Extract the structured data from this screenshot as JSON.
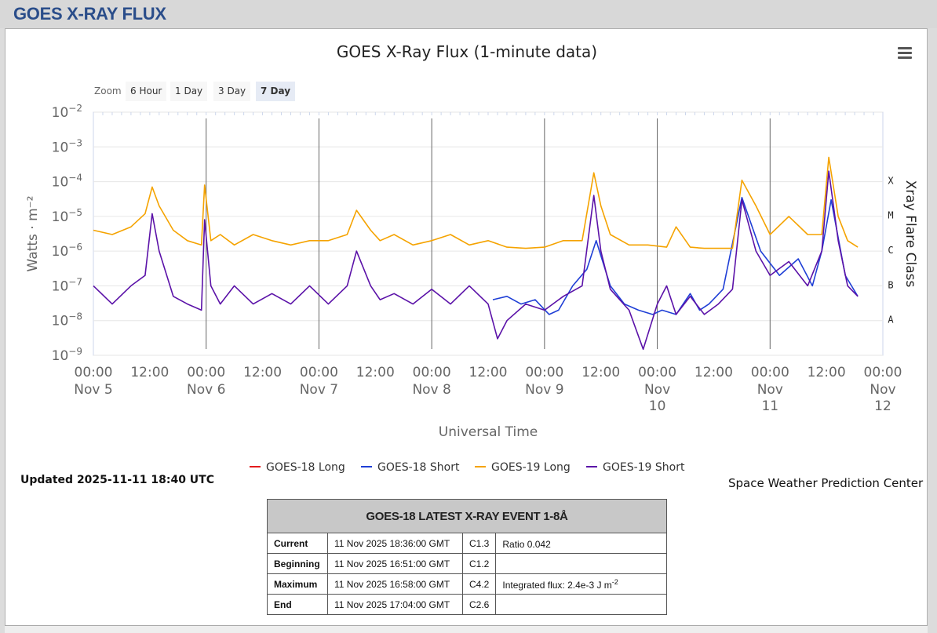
{
  "page": {
    "title": "GOES X-RAY FLUX"
  },
  "chart_data": {
    "type": "line",
    "title": "GOES X-Ray Flux (1-minute data)",
    "xlabel": "Universal Time",
    "ylabel": "Watts · m⁻²",
    "y2label": "Xray Flare Class",
    "yscale": "log",
    "ylim": [
      1e-09,
      0.01
    ],
    "xlim": [
      "2025-11-05 00:00",
      "2025-11-12 00:00"
    ],
    "y_ticks": [
      {
        "base": "10",
        "exp": "−2"
      },
      {
        "base": "10",
        "exp": "−3"
      },
      {
        "base": "10",
        "exp": "−4"
      },
      {
        "base": "10",
        "exp": "−5"
      },
      {
        "base": "10",
        "exp": "−6"
      },
      {
        "base": "10",
        "exp": "−7"
      },
      {
        "base": "10",
        "exp": "−8"
      },
      {
        "base": "10",
        "exp": "−9"
      }
    ],
    "flare_classes": [
      "X",
      "M",
      "C",
      "B",
      "A"
    ],
    "x_ticks": [
      {
        "time": "00:00",
        "date": [
          "Nov 5"
        ]
      },
      {
        "time": "12:00",
        "date": []
      },
      {
        "time": "00:00",
        "date": [
          "Nov 6"
        ]
      },
      {
        "time": "12:00",
        "date": []
      },
      {
        "time": "00:00",
        "date": [
          "Nov 7"
        ]
      },
      {
        "time": "12:00",
        "date": []
      },
      {
        "time": "00:00",
        "date": [
          "Nov 8"
        ]
      },
      {
        "time": "12:00",
        "date": []
      },
      {
        "time": "00:00",
        "date": [
          "Nov 9"
        ]
      },
      {
        "time": "12:00",
        "date": []
      },
      {
        "time": "00:00",
        "date": [
          "Nov",
          "10"
        ]
      },
      {
        "time": "12:00",
        "date": []
      },
      {
        "time": "00:00",
        "date": [
          "Nov",
          "11"
        ]
      },
      {
        "time": "12:00",
        "date": []
      },
      {
        "time": "00:00",
        "date": [
          "Nov",
          "12"
        ]
      }
    ],
    "series": [
      {
        "name": "GOES-18 Long",
        "color": "#e31a1c",
        "x": [],
        "y": []
      },
      {
        "name": "GOES-18 Short",
        "color": "#1f3fd6",
        "x": [
          "2025-11-08 13:00",
          "2025-11-08 16:00",
          "2025-11-08 19:00",
          "2025-11-08 22:00",
          "2025-11-09 01:00",
          "2025-11-09 03:00",
          "2025-11-09 06:00",
          "2025-11-09 09:00",
          "2025-11-09 11:00",
          "2025-11-09 14:00",
          "2025-11-09 17:00",
          "2025-11-09 20:00",
          "2025-11-09 23:00",
          "2025-11-10 01:00",
          "2025-11-10 04:00",
          "2025-11-10 07:00",
          "2025-11-10 09:00",
          "2025-11-10 11:00",
          "2025-11-10 14:00",
          "2025-11-10 18:00",
          "2025-11-10 22:00",
          "2025-11-11 02:00",
          "2025-11-11 06:00",
          "2025-11-11 09:00",
          "2025-11-11 11:00",
          "2025-11-11 13:00",
          "2025-11-11 16:00",
          "2025-11-11 18:40"
        ],
        "y": [
          4e-08,
          5e-08,
          3e-08,
          4e-08,
          1.5e-08,
          2e-08,
          1e-07,
          3e-07,
          2e-06,
          1e-07,
          3e-08,
          2e-08,
          1.5e-08,
          2e-08,
          1.5e-08,
          6e-08,
          2e-08,
          3e-08,
          8e-08,
          3.5e-05,
          1e-06,
          2e-07,
          6e-07,
          1e-07,
          1e-06,
          3e-05,
          2e-07,
          5e-08
        ]
      },
      {
        "name": "GOES-19 Long",
        "color": "#f5a300",
        "x": [
          "2025-11-05 00:00",
          "2025-11-05 04:00",
          "2025-11-05 08:00",
          "2025-11-05 11:00",
          "2025-11-05 12:30",
          "2025-11-05 14:00",
          "2025-11-05 17:00",
          "2025-11-05 20:00",
          "2025-11-05 23:00",
          "2025-11-05 23:40",
          "2025-11-06 01:00",
          "2025-11-06 03:00",
          "2025-11-06 06:00",
          "2025-11-06 10:00",
          "2025-11-06 14:00",
          "2025-11-06 18:00",
          "2025-11-06 22:00",
          "2025-11-07 02:00",
          "2025-11-07 06:00",
          "2025-11-07 08:00",
          "2025-11-07 11:00",
          "2025-11-07 13:00",
          "2025-11-07 16:00",
          "2025-11-07 20:00",
          "2025-11-08 00:00",
          "2025-11-08 04:00",
          "2025-11-08 08:00",
          "2025-11-08 12:00",
          "2025-11-08 16:00",
          "2025-11-08 20:00",
          "2025-11-09 00:00",
          "2025-11-09 04:00",
          "2025-11-09 08:00",
          "2025-11-09 10:30",
          "2025-11-09 12:00",
          "2025-11-09 14:00",
          "2025-11-09 18:00",
          "2025-11-09 22:00",
          "2025-11-10 02:00",
          "2025-11-10 04:00",
          "2025-11-10 07:00",
          "2025-11-10 10:00",
          "2025-11-10 13:00",
          "2025-11-10 16:00",
          "2025-11-10 18:00",
          "2025-11-10 21:00",
          "2025-11-11 00:00",
          "2025-11-11 04:00",
          "2025-11-11 08:00",
          "2025-11-11 11:00",
          "2025-11-11 12:30",
          "2025-11-11 14:30",
          "2025-11-11 16:30",
          "2025-11-11 18:40"
        ],
        "y": [
          4e-06,
          3e-06,
          5e-06,
          1.2e-05,
          7e-05,
          2e-05,
          4e-06,
          2e-06,
          1.5e-06,
          8e-05,
          2e-06,
          3e-06,
          1.5e-06,
          3e-06,
          2e-06,
          1.5e-06,
          2e-06,
          2e-06,
          3e-06,
          1.5e-05,
          4e-06,
          2e-06,
          3e-06,
          1.5e-06,
          2e-06,
          3e-06,
          1.5e-06,
          2e-06,
          1.3e-06,
          1.2e-06,
          1.3e-06,
          2e-06,
          2e-06,
          0.00018,
          2e-05,
          3e-06,
          1.5e-06,
          1.5e-06,
          1.3e-06,
          5e-06,
          1.3e-06,
          1.2e-06,
          1.2e-06,
          1.2e-06,
          0.00011,
          2e-05,
          3e-06,
          1e-05,
          3e-06,
          3e-06,
          0.0005,
          1e-05,
          2e-06,
          1.3e-06
        ]
      },
      {
        "name": "GOES-19 Short",
        "color": "#5b12a8",
        "x": [
          "2025-11-05 00:00",
          "2025-11-05 04:00",
          "2025-11-05 08:00",
          "2025-11-05 11:00",
          "2025-11-05 12:30",
          "2025-11-05 14:00",
          "2025-11-05 17:00",
          "2025-11-05 20:00",
          "2025-11-05 23:00",
          "2025-11-05 23:40",
          "2025-11-06 01:00",
          "2025-11-06 03:00",
          "2025-11-06 06:00",
          "2025-11-06 10:00",
          "2025-11-06 14:00",
          "2025-11-06 18:00",
          "2025-11-06 22:00",
          "2025-11-07 02:00",
          "2025-11-07 06:00",
          "2025-11-07 08:00",
          "2025-11-07 11:00",
          "2025-11-07 13:00",
          "2025-11-07 16:00",
          "2025-11-07 20:00",
          "2025-11-08 00:00",
          "2025-11-08 04:00",
          "2025-11-08 08:00",
          "2025-11-08 12:00",
          "2025-11-08 14:00",
          "2025-11-08 16:00",
          "2025-11-08 20:00",
          "2025-11-09 00:00",
          "2025-11-09 04:00",
          "2025-11-09 08:00",
          "2025-11-09 10:30",
          "2025-11-09 12:00",
          "2025-11-09 14:00",
          "2025-11-09 18:00",
          "2025-11-09 21:00",
          "2025-11-10 00:00",
          "2025-11-10 02:00",
          "2025-11-10 04:00",
          "2025-11-10 07:00",
          "2025-11-10 10:00",
          "2025-11-10 13:00",
          "2025-11-10 16:00",
          "2025-11-10 18:00",
          "2025-11-10 21:00",
          "2025-11-11 00:00",
          "2025-11-11 04:00",
          "2025-11-11 08:00",
          "2025-11-11 11:00",
          "2025-11-11 12:30",
          "2025-11-11 14:30",
          "2025-11-11 16:30",
          "2025-11-11 18:40"
        ],
        "y": [
          1e-07,
          3e-08,
          1e-07,
          2e-07,
          1.2e-05,
          1e-06,
          5e-08,
          3e-08,
          2e-08,
          8e-06,
          1e-07,
          3e-08,
          1e-07,
          3e-08,
          6e-08,
          3e-08,
          1e-07,
          3e-08,
          1e-07,
          1e-06,
          1e-07,
          4e-08,
          6e-08,
          3e-08,
          8e-08,
          3e-08,
          1e-07,
          3e-08,
          3e-09,
          1e-08,
          3e-08,
          2e-08,
          5e-08,
          1e-07,
          4e-05,
          1e-06,
          8e-08,
          2e-08,
          1.5e-09,
          3e-08,
          1e-07,
          1.5e-08,
          5e-08,
          1.5e-08,
          3e-08,
          8e-08,
          3e-05,
          1e-06,
          2e-07,
          5e-07,
          1e-07,
          1e-06,
          0.0002,
          2e-06,
          1e-07,
          5e-08
        ]
      }
    ],
    "legend_position": "bottom",
    "grid": true
  },
  "zoom": {
    "label": "Zoom",
    "options": [
      "6 Hour",
      "1 Day",
      "3 Day",
      "7 Day"
    ],
    "selected": "7 Day"
  },
  "footer": {
    "updated": "Updated 2025-11-11 18:40 UTC",
    "credit": "Space Weather Prediction Center"
  },
  "event_table": {
    "title": "GOES-18 LATEST X-RAY EVENT 1-8Å",
    "rows": [
      {
        "label": "Current",
        "time": "11 Nov 2025 18:36:00 GMT",
        "class": "C1.3",
        "note": "Ratio 0.042",
        "note_sup": ""
      },
      {
        "label": "Beginning",
        "time": "11 Nov 2025 16:51:00 GMT",
        "class": "C1.2",
        "note": "",
        "note_sup": ""
      },
      {
        "label": "Maximum",
        "time": "11 Nov 2025 16:58:00 GMT",
        "class": "C4.2",
        "note": "Integrated flux: 2.4e-3 J m",
        "note_sup": "-2"
      },
      {
        "label": "End",
        "time": "11 Nov 2025 17:04:00 GMT",
        "class": "C2.6",
        "note": "",
        "note_sup": ""
      }
    ]
  }
}
